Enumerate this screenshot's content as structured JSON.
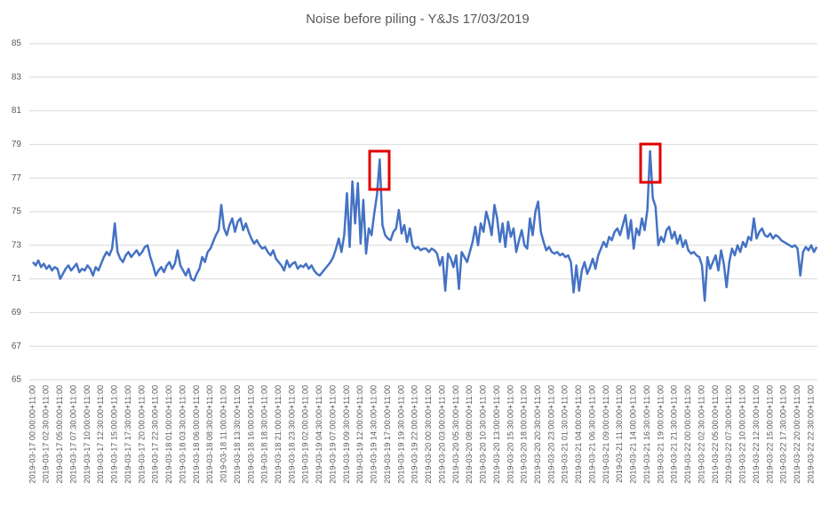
{
  "chart_data": {
    "type": "line",
    "title": "Noise before piling - Y&Js 17/03/2019",
    "categories": [
      "2019-03-17 00:00:00+11:00",
      null,
      null,
      null,
      null,
      "2019-03-17 02:30:00+11:00",
      null,
      null,
      null,
      null,
      "2019-03-17 05:00:00+11:00",
      null,
      null,
      null,
      null,
      "2019-03-17 07:30:00+11:00",
      null,
      null,
      null,
      null,
      "2019-03-17 10:00:00+11:00",
      null,
      null,
      null,
      null,
      "2019-03-17 12:30:00+11:00",
      null,
      null,
      null,
      null,
      "2019-03-17 15:00:00+11:00",
      null,
      null,
      null,
      null,
      "2019-03-17 17:30:00+11:00",
      null,
      null,
      null,
      null,
      "2019-03-17 20:00:00+11:00",
      null,
      null,
      null,
      null,
      "2019-03-17 22:30:00+11:00",
      null,
      null,
      null,
      null,
      "2019-03-18 01:00:00+11:00",
      null,
      null,
      null,
      null,
      "2019-03-18 03:30:00+11:00",
      null,
      null,
      null,
      null,
      "2019-03-18 06:00:00+11:00",
      null,
      null,
      null,
      null,
      "2019-03-18 08:30:00+11:00",
      null,
      null,
      null,
      null,
      "2019-03-18 11:00:00+11:00",
      null,
      null,
      null,
      null,
      "2019-03-18 13:30:00+11:00",
      null,
      null,
      null,
      null,
      "2019-03-18 16:00:00+11:00",
      null,
      null,
      null,
      null,
      "2019-03-18 18:30:00+11:00",
      null,
      null,
      null,
      null,
      "2019-03-18 21:00:00+11:00",
      null,
      null,
      null,
      null,
      "2019-03-18 23:30:00+11:00",
      null,
      null,
      null,
      null,
      "2019-03-19 02:00:00+11:00",
      null,
      null,
      null,
      null,
      "2019-03-19 04:30:00+11:00",
      null,
      null,
      null,
      null,
      "2019-03-19 07:00:00+11:00",
      null,
      null,
      null,
      null,
      "2019-03-19 09:30:00+11:00",
      null,
      null,
      null,
      null,
      "2019-03-19 12:00:00+11:00",
      null,
      null,
      null,
      null,
      "2019-03-19 14:30:00+11:00",
      null,
      null,
      null,
      null,
      "2019-03-19 17:00:00+11:00",
      null,
      null,
      null,
      null,
      "2019-03-19 19:30:00+11:00",
      null,
      null,
      null,
      null,
      "2019-03-19 22:00:00+11:00",
      null,
      null,
      null,
      null,
      "2019-03-20 00:30:00+11:00",
      null,
      null,
      null,
      null,
      "2019-03-20 03:00:00+11:00",
      null,
      null,
      null,
      null,
      "2019-03-20 05:30:00+11:00",
      null,
      null,
      null,
      null,
      "2019-03-20 08:00:00+11:00",
      null,
      null,
      null,
      null,
      "2019-03-20 10:30:00+11:00",
      null,
      null,
      null,
      null,
      "2019-03-20 13:00:00+11:00",
      null,
      null,
      null,
      null,
      "2019-03-20 15:30:00+11:00",
      null,
      null,
      null,
      null,
      "2019-03-20 18:00:00+11:00",
      null,
      null,
      null,
      null,
      "2019-03-20 20:30:00+11:00",
      null,
      null,
      null,
      null,
      "2019-03-20 23:00:00+11:00",
      null,
      null,
      null,
      null,
      "2019-03-21 01:30:00+11:00",
      null,
      null,
      null,
      null,
      "2019-03-21 04:00:00+11:00",
      null,
      null,
      null,
      null,
      "2019-03-21 06:30:00+11:00",
      null,
      null,
      null,
      null,
      "2019-03-21 09:00:00+11:00",
      null,
      null,
      null,
      null,
      "2019-03-21 11:30:00+11:00",
      null,
      null,
      null,
      null,
      "2019-03-21 14:00:00+11:00",
      null,
      null,
      null,
      null,
      "2019-03-21 16:30:00+11:00",
      null,
      null,
      null,
      null,
      "2019-03-21 19:00:00+11:00",
      null,
      null,
      null,
      null,
      "2019-03-21 21:30:00+11:00",
      null,
      null,
      null,
      null,
      "2019-03-22 00:00:00+11:00",
      null,
      null,
      null,
      null,
      "2019-03-22 02:30:00+11:00",
      null,
      null,
      null,
      null,
      "2019-03-22 05:00:00+11:00",
      null,
      null,
      null,
      null,
      "2019-03-22 07:30:00+11:00",
      null,
      null,
      null,
      null,
      "2019-03-22 10:00:00+11:00",
      null,
      null,
      null,
      null,
      "2019-03-22 12:30:00+11:00",
      null,
      null,
      null,
      null,
      "2019-03-22 15:00:00+11:00",
      null,
      null,
      null,
      null,
      "2019-03-22 17:30:00+11:00",
      null,
      null,
      null,
      null,
      "2019-03-22 20:00:00+11:00",
      null,
      null,
      null,
      null,
      "2019-03-22 22:30:00+11:00",
      null,
      null
    ],
    "series": [
      {
        "color": "#4472c4",
        "values": [
          72.0,
          71.8,
          72.1,
          71.7,
          71.9,
          71.6,
          71.8,
          71.5,
          71.7,
          71.6,
          71.0,
          71.3,
          71.6,
          71.8,
          71.5,
          71.7,
          71.9,
          71.4,
          71.6,
          71.5,
          71.8,
          71.6,
          71.2,
          71.7,
          71.5,
          71.9,
          72.3,
          72.6,
          72.4,
          72.8,
          74.3,
          72.6,
          72.2,
          72.0,
          72.4,
          72.6,
          72.3,
          72.5,
          72.7,
          72.4,
          72.6,
          72.9,
          73.0,
          72.3,
          71.8,
          71.2,
          71.5,
          71.7,
          71.4,
          71.8,
          72.0,
          71.6,
          71.9,
          72.7,
          71.8,
          71.5,
          71.2,
          71.6,
          71.0,
          70.9,
          71.3,
          71.6,
          72.3,
          72.0,
          72.6,
          72.8,
          73.2,
          73.6,
          73.9,
          75.4,
          74.0,
          73.6,
          74.2,
          74.6,
          73.8,
          74.4,
          74.6,
          73.9,
          74.3,
          73.8,
          73.4,
          73.1,
          73.3,
          73.0,
          72.8,
          72.9,
          72.6,
          72.4,
          72.7,
          72.2,
          72.0,
          71.8,
          71.5,
          72.1,
          71.7,
          71.9,
          72.0,
          71.6,
          71.8,
          71.7,
          71.9,
          71.6,
          71.8,
          71.5,
          71.3,
          71.2,
          71.4,
          71.6,
          71.8,
          72.0,
          72.3,
          72.8,
          73.4,
          72.6,
          73.6,
          76.1,
          72.9,
          76.8,
          74.3,
          76.7,
          73.1,
          75.7,
          72.5,
          74.0,
          73.6,
          74.9,
          76.0,
          78.1,
          74.2,
          73.6,
          73.4,
          73.3,
          73.8,
          74.0,
          75.1,
          73.7,
          74.2,
          73.2,
          74.0,
          73.0,
          72.8,
          72.9,
          72.7,
          72.8,
          72.8,
          72.6,
          72.8,
          72.7,
          72.5,
          71.8,
          72.3,
          70.3,
          72.5,
          72.2,
          71.7,
          72.4,
          70.4,
          72.6,
          72.3,
          72.0,
          72.6,
          73.2,
          74.1,
          73.0,
          74.3,
          73.8,
          75.0,
          74.4,
          73.6,
          75.4,
          74.6,
          73.2,
          74.3,
          72.9,
          74.4,
          73.5,
          74.0,
          72.6,
          73.3,
          73.9,
          73.0,
          72.8,
          74.6,
          73.6,
          75.0,
          75.6,
          73.8,
          73.2,
          72.7,
          72.9,
          72.6,
          72.5,
          72.6,
          72.4,
          72.5,
          72.3,
          72.4,
          72.0,
          70.2,
          71.8,
          70.3,
          71.5,
          72.0,
          71.3,
          71.7,
          72.2,
          71.6,
          72.4,
          72.8,
          73.2,
          72.9,
          73.5,
          73.3,
          73.8,
          74.0,
          73.6,
          74.2,
          74.8,
          73.4,
          74.5,
          72.8,
          74.0,
          73.6,
          74.6,
          73.9,
          75.1,
          78.6,
          75.8,
          75.3,
          73.0,
          73.5,
          73.2,
          73.9,
          74.1,
          73.4,
          73.8,
          73.1,
          73.6,
          72.9,
          73.3,
          72.7,
          72.5,
          72.6,
          72.4,
          72.3,
          71.8,
          69.7,
          72.3,
          71.6,
          72.0,
          72.4,
          71.5,
          72.7,
          71.9,
          70.5,
          72.0,
          72.8,
          72.4,
          73.0,
          72.6,
          73.2,
          72.9,
          73.5,
          73.3,
          74.6,
          73.4,
          73.8,
          74.0,
          73.6,
          73.5,
          73.7,
          73.4,
          73.6,
          73.5,
          73.3,
          73.2,
          73.1,
          73.0,
          72.9,
          73.0,
          72.8,
          71.2,
          72.6,
          72.9,
          72.7,
          73.0,
          72.6,
          72.9
        ]
      }
    ],
    "ylim": [
      65,
      85
    ],
    "yticks": [
      65,
      67,
      69,
      71,
      73,
      75,
      77,
      79,
      81,
      83,
      85
    ],
    "grid": true
  }
}
